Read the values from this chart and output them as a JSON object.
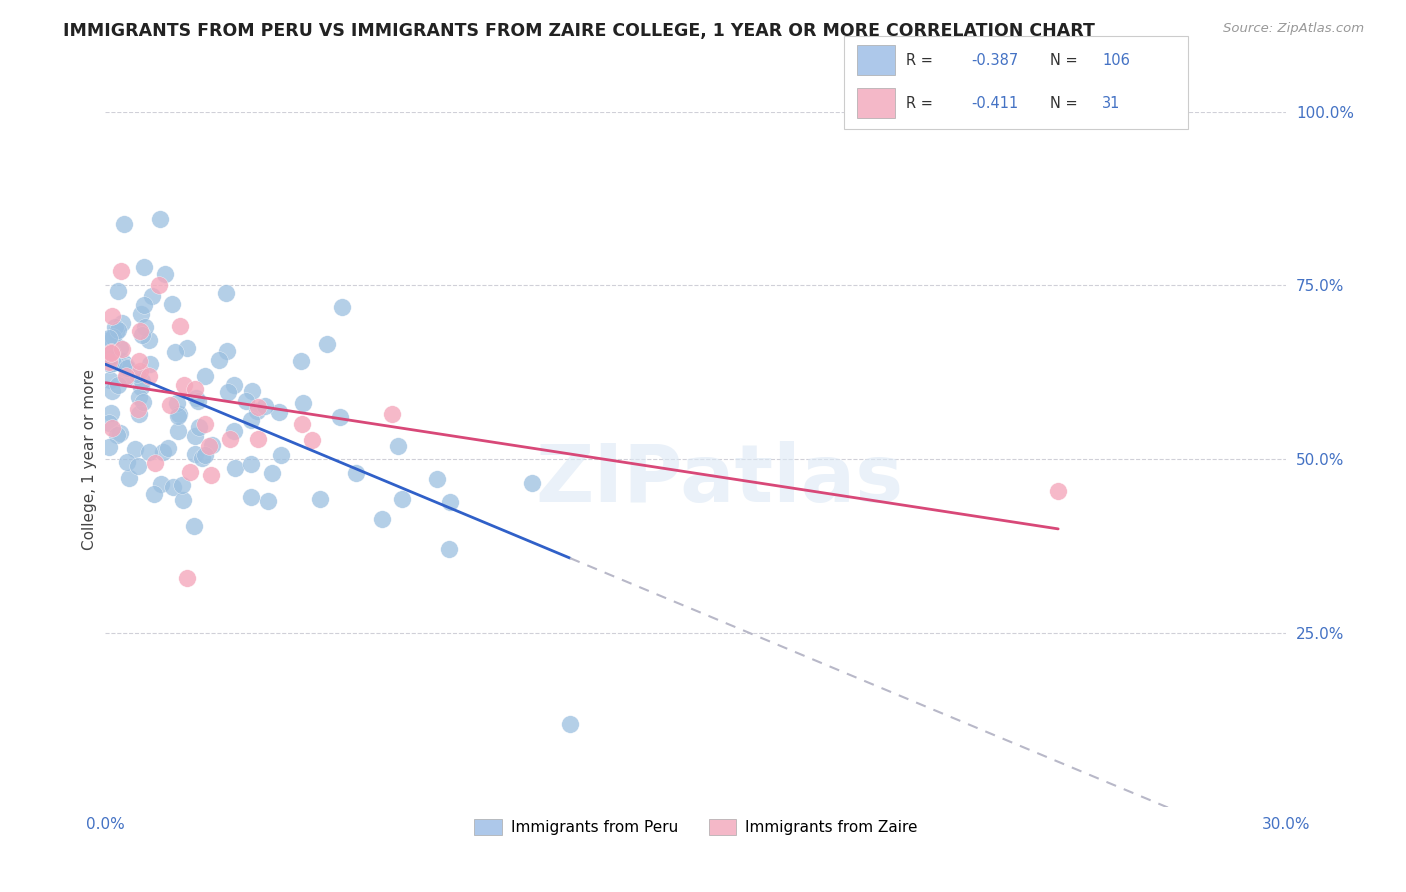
{
  "title": "IMMIGRANTS FROM PERU VS IMMIGRANTS FROM ZAIRE COLLEGE, 1 YEAR OR MORE CORRELATION CHART",
  "source": "Source: ZipAtlas.com",
  "ylabel": "College, 1 year or more",
  "ylabel_right_ticks": [
    "100.0%",
    "75.0%",
    "50.0%",
    "25.0%"
  ],
  "ylabel_right_vals": [
    1.0,
    0.75,
    0.5,
    0.25
  ],
  "xmin": 0.0,
  "xmax": 0.3,
  "ymin": 0.0,
  "ymax": 1.0,
  "legend_peru_color": "#adc8ea",
  "legend_zaire_color": "#f4b8c8",
  "legend_peru_label": "Immigrants from Peru",
  "legend_zaire_label": "Immigrants from Zaire",
  "peru_R": -0.387,
  "peru_N": 106,
  "zaire_R": -0.411,
  "zaire_N": 31,
  "peru_scatter_color": "#9bbfe0",
  "zaire_scatter_color": "#f4a8bc",
  "peru_line_color": "#3060c8",
  "zaire_line_color": "#d84878",
  "regression_extend_color": "#b8b8c8",
  "watermark": "ZIPatlas",
  "background_color": "#ffffff",
  "grid_color": "#d0d0d8",
  "title_color": "#222222",
  "blue_color": "#4472c4",
  "legend_text_color": "#333333",
  "source_color": "#999999"
}
